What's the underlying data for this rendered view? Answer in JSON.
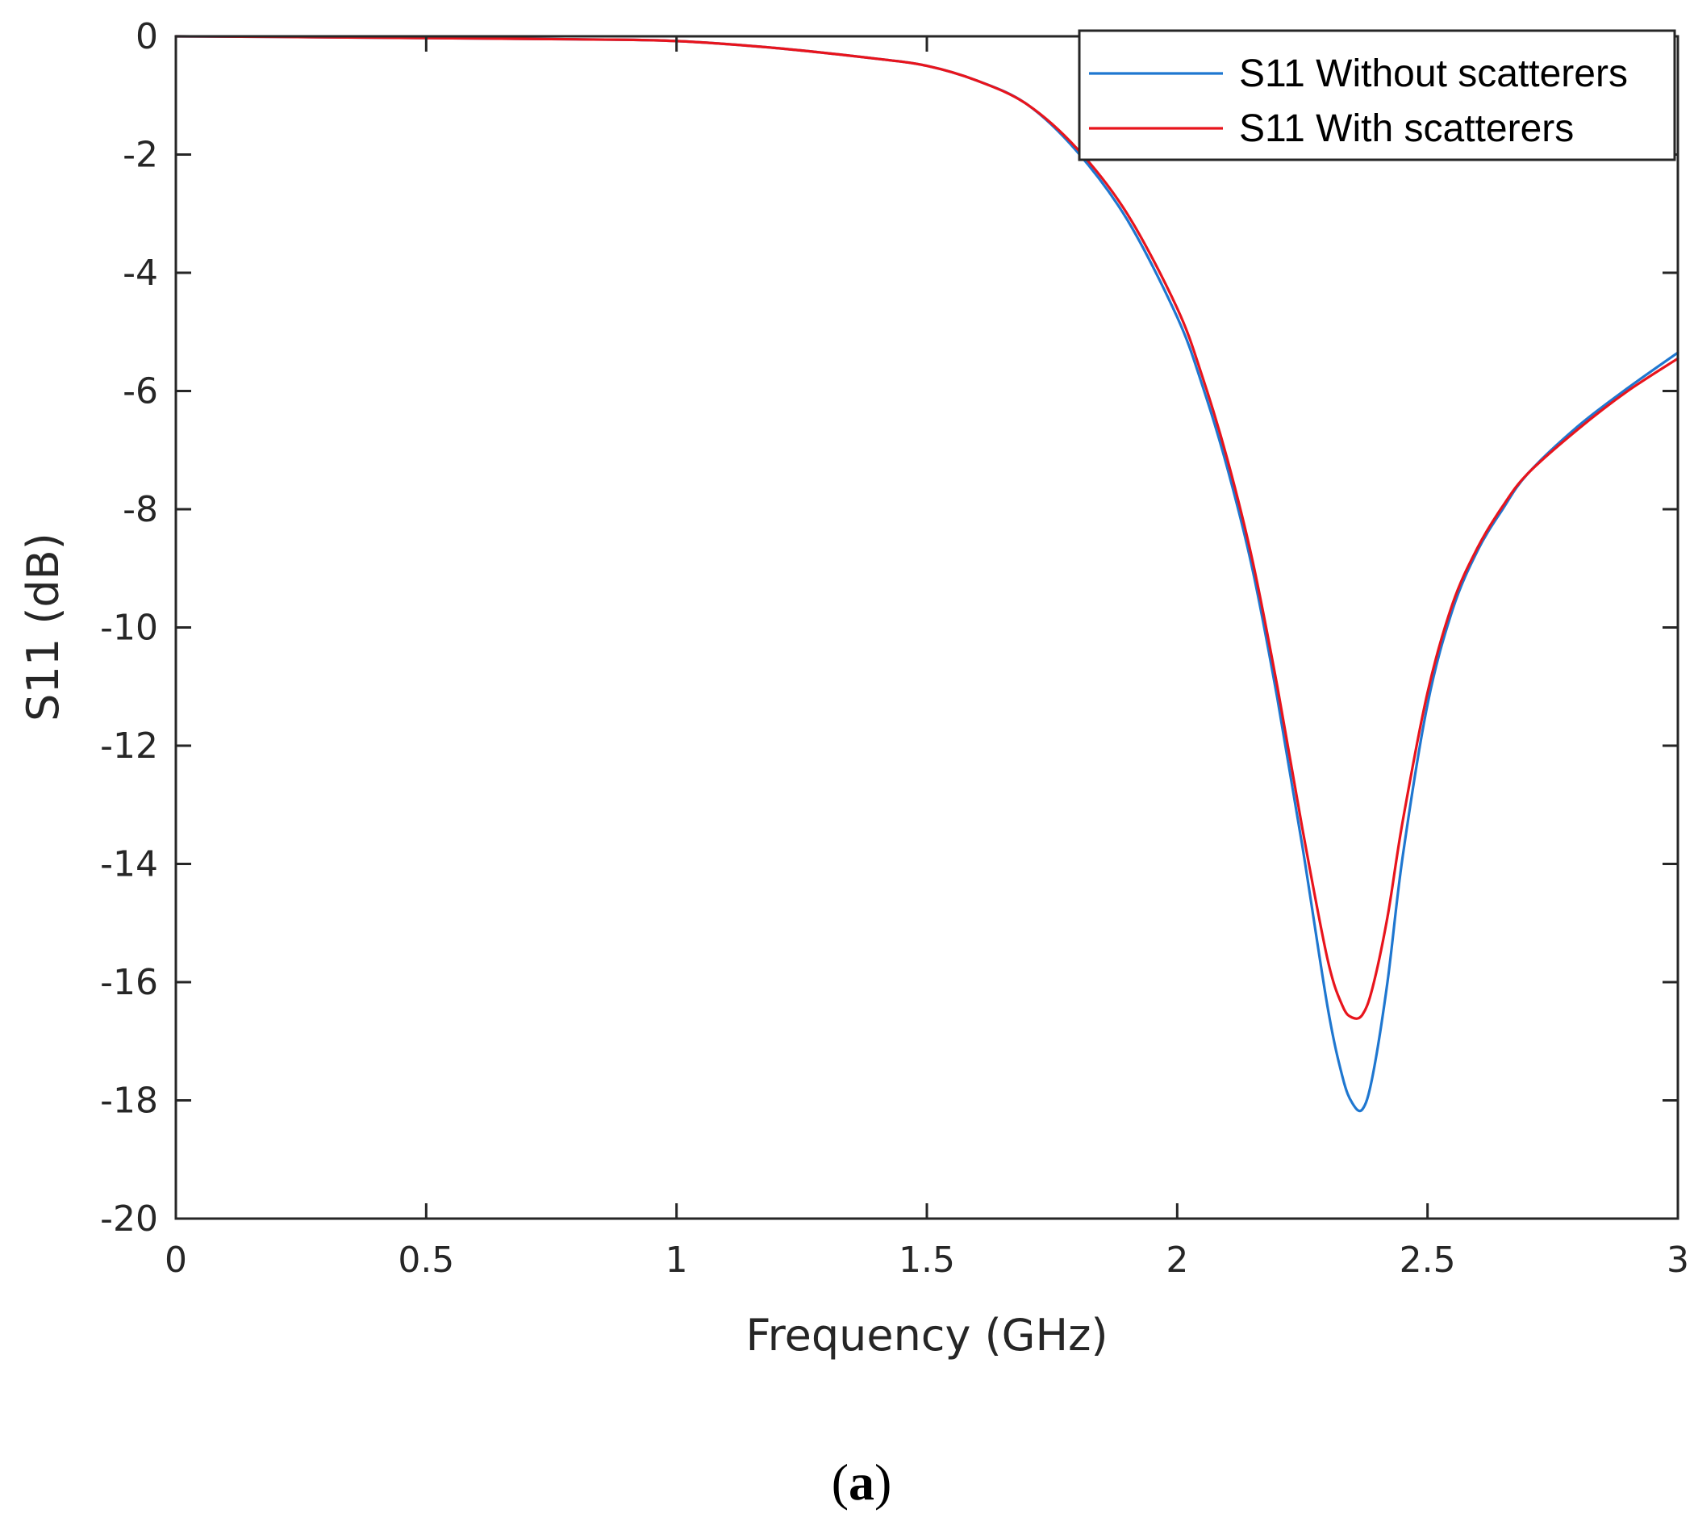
{
  "chart_data": {
    "type": "line",
    "xlabel": "Frequency (GHz)",
    "ylabel": "S11 (dB)",
    "xlim": [
      0,
      3
    ],
    "ylim": [
      -20,
      0
    ],
    "xticks": [
      "0",
      "0.5",
      "1",
      "1.5",
      "2",
      "2.5",
      "3"
    ],
    "yticks": [
      "0",
      "-2",
      "-4",
      "-6",
      "-8",
      "-10",
      "-12",
      "-14",
      "-16",
      "-18",
      "-20"
    ],
    "grid": false,
    "legend_position": "top-right",
    "series": [
      {
        "name": "S11 Without scatterers",
        "color": "#1f77d0",
        "x": [
          0,
          0.2,
          0.5,
          0.8,
          1.0,
          1.2,
          1.4,
          1.5,
          1.6,
          1.7,
          1.8,
          1.9,
          2.0,
          2.05,
          2.1,
          2.15,
          2.2,
          2.25,
          2.3,
          2.33,
          2.35,
          2.37,
          2.39,
          2.42,
          2.45,
          2.5,
          2.55,
          2.6,
          2.65,
          2.7,
          2.8,
          2.9,
          3.0
        ],
        "y": [
          0,
          -0.01,
          -0.03,
          -0.05,
          -0.08,
          -0.2,
          -0.38,
          -0.5,
          -0.75,
          -1.15,
          -1.95,
          -3.1,
          -4.75,
          -5.9,
          -7.3,
          -9.0,
          -11.2,
          -13.7,
          -16.4,
          -17.6,
          -18.05,
          -18.15,
          -17.6,
          -16.0,
          -13.9,
          -11.3,
          -9.7,
          -8.7,
          -8.0,
          -7.4,
          -6.6,
          -5.95,
          -5.35
        ]
      },
      {
        "name": "S11 With scatterers",
        "color": "#e8141c",
        "x": [
          0,
          0.2,
          0.5,
          0.8,
          1.0,
          1.2,
          1.4,
          1.5,
          1.6,
          1.7,
          1.8,
          1.9,
          2.0,
          2.05,
          2.1,
          2.15,
          2.2,
          2.25,
          2.3,
          2.33,
          2.35,
          2.37,
          2.39,
          2.42,
          2.45,
          2.5,
          2.55,
          2.6,
          2.65,
          2.7,
          2.8,
          2.9,
          3.0
        ],
        "y": [
          0,
          -0.01,
          -0.03,
          -0.05,
          -0.08,
          -0.2,
          -0.38,
          -0.5,
          -0.75,
          -1.15,
          -1.9,
          -3.0,
          -4.6,
          -5.75,
          -7.15,
          -8.85,
          -11.0,
          -13.4,
          -15.6,
          -16.4,
          -16.6,
          -16.55,
          -16.1,
          -14.9,
          -13.3,
          -11.1,
          -9.6,
          -8.65,
          -7.95,
          -7.4,
          -6.65,
          -6.0,
          -5.45
        ]
      }
    ]
  },
  "caption": {
    "open": "(",
    "letter": "a",
    "close": ")"
  }
}
